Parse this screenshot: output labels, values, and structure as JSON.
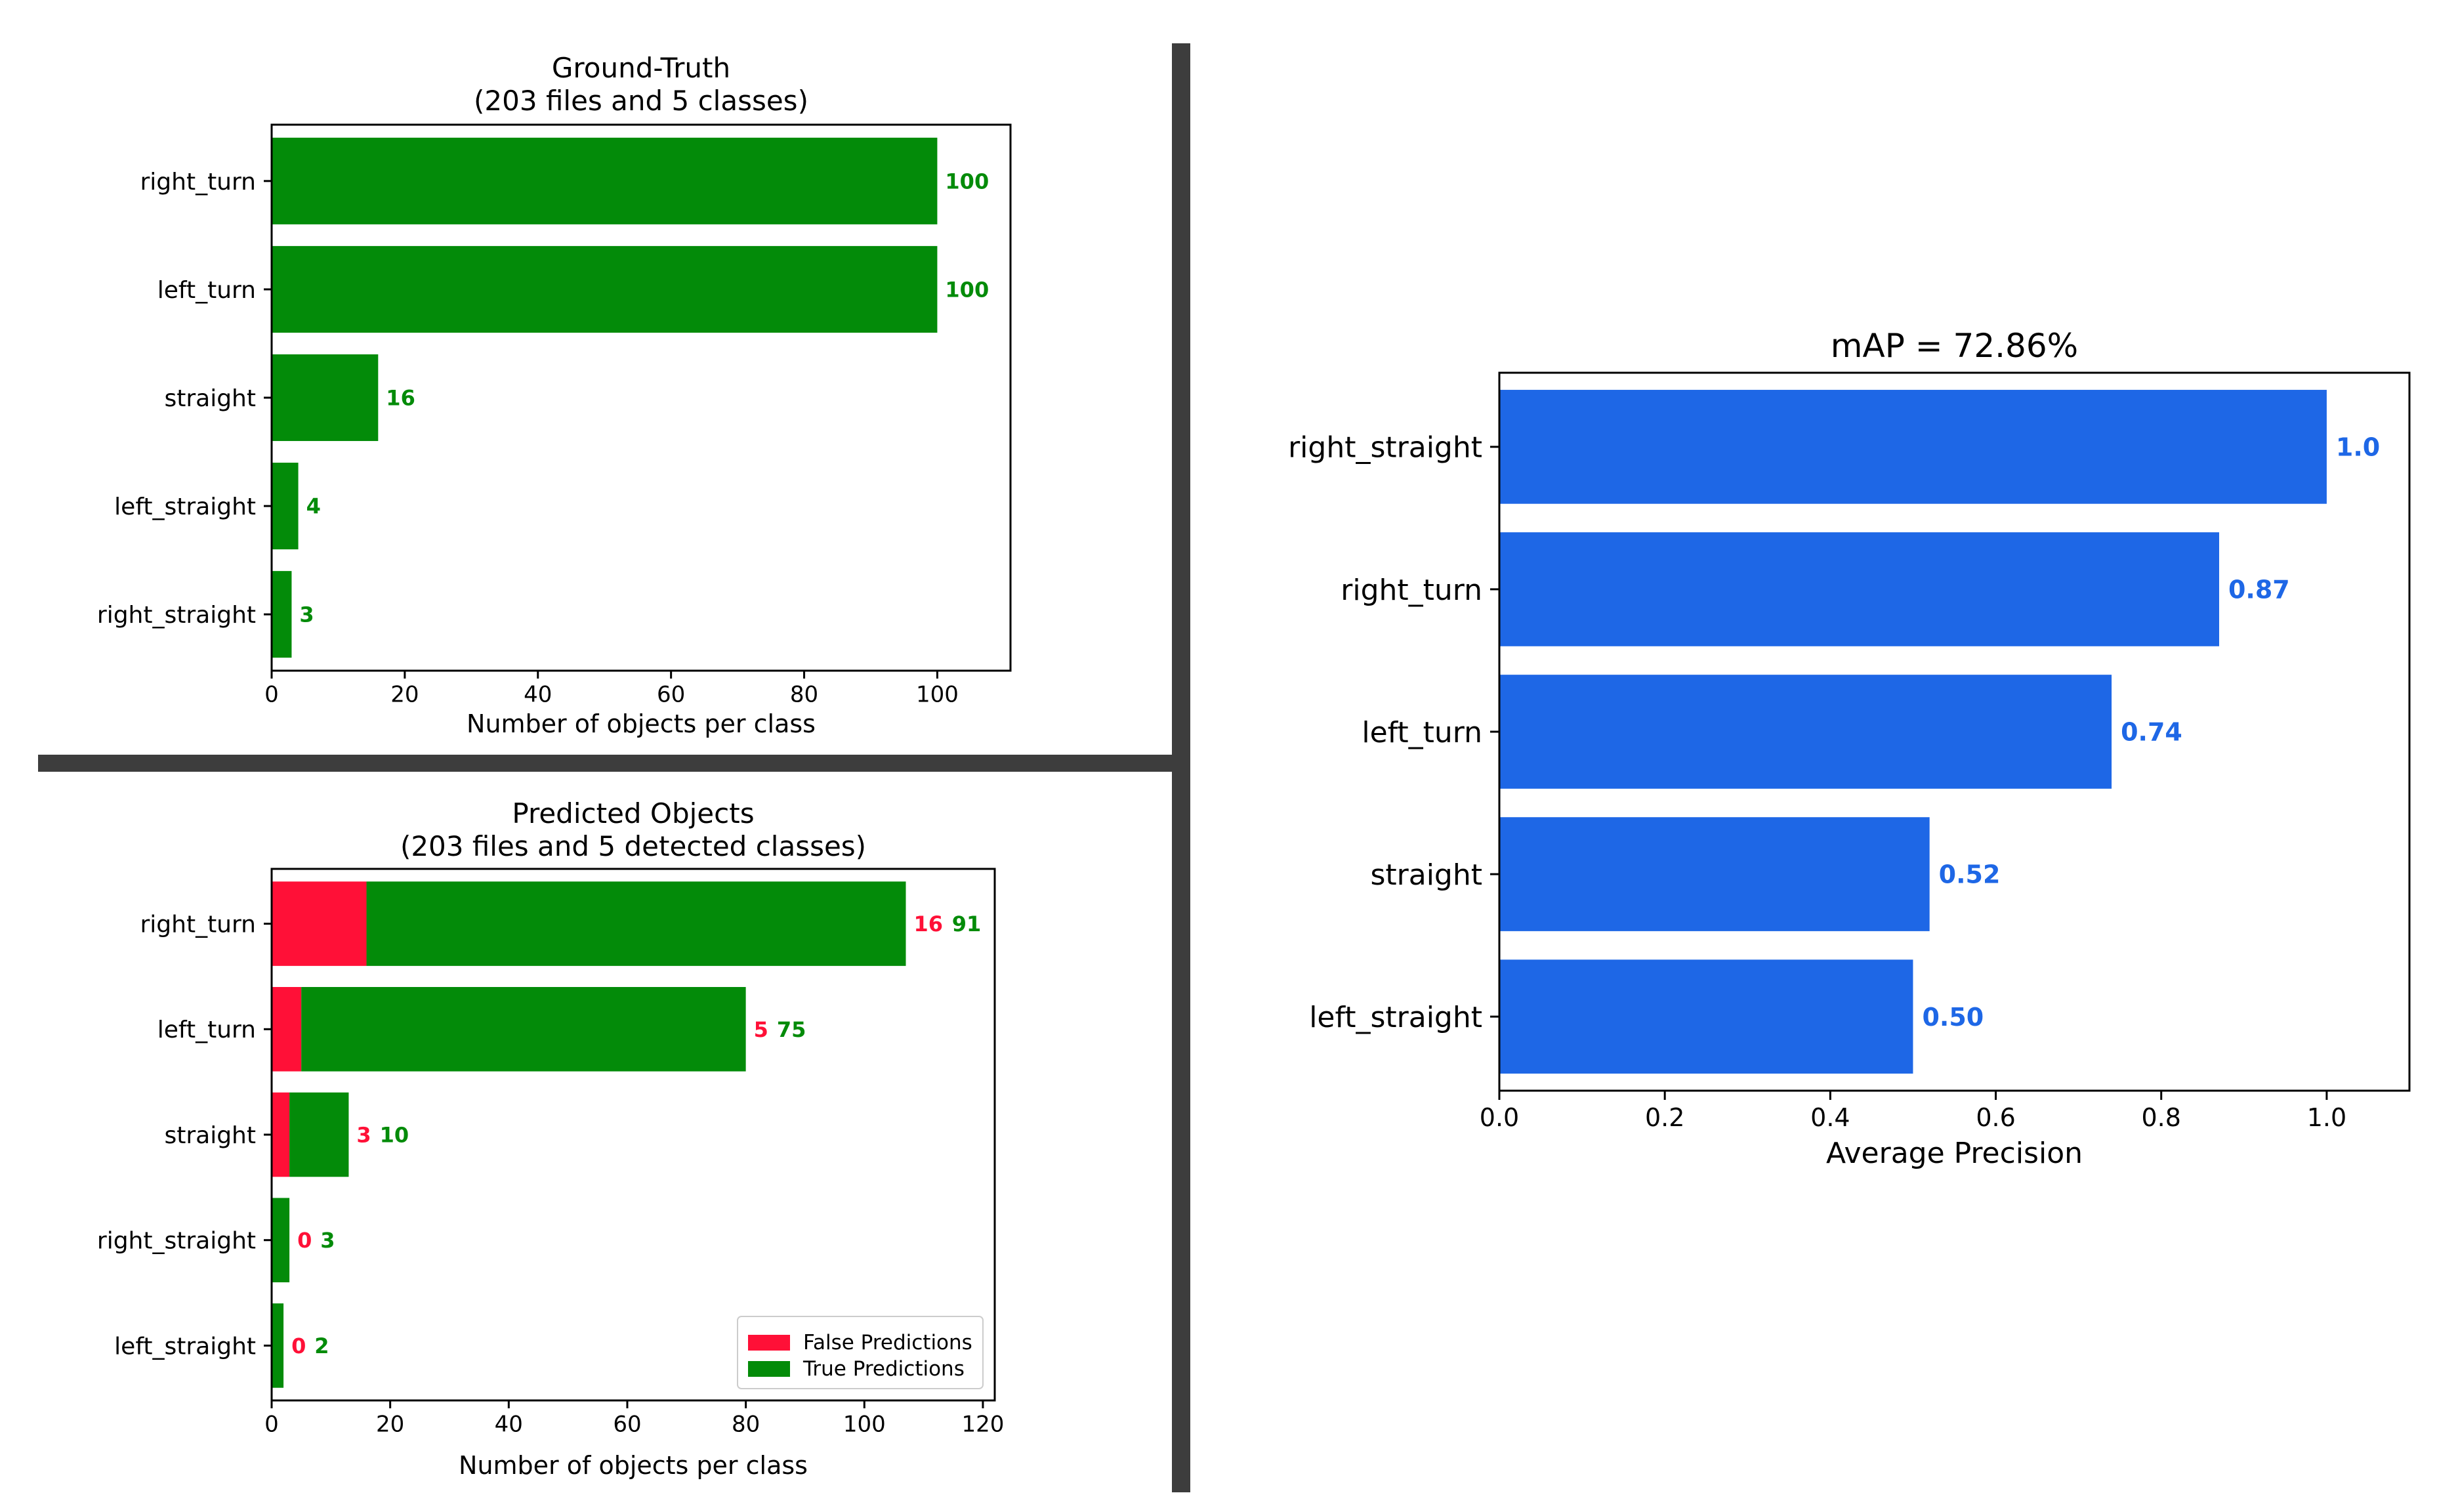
{
  "colors": {
    "tp_green": "#038b09",
    "fp_red": "#ff1037",
    "ap_blue": "#1e67e6",
    "axis_black": "#000000"
  },
  "chart_data": [
    {
      "id": "ground_truth",
      "type": "bar",
      "orientation": "horizontal",
      "title": "Ground-Truth",
      "subtitle": "(203 files and 5 classes)",
      "xlabel": "Number of objects per class",
      "ylabel": "",
      "xlim": [
        0,
        111
      ],
      "xticks": [
        0,
        20,
        40,
        60,
        80,
        100
      ],
      "grid": false,
      "categories": [
        "right_turn",
        "left_turn",
        "straight",
        "left_straight",
        "right_straight"
      ],
      "values": [
        100,
        100,
        16,
        4,
        3
      ],
      "value_labels": [
        "100",
        "100",
        "16",
        "4",
        "3"
      ],
      "bar_color": "#038b09"
    },
    {
      "id": "predicted_objects",
      "type": "bar",
      "orientation": "horizontal",
      "stacked": true,
      "title": "Predicted Objects",
      "subtitle": "(203 files and 5 detected classes)",
      "xlabel": "Number of objects per class",
      "ylabel": "",
      "xlim": [
        0,
        122
      ],
      "xticks": [
        0,
        20,
        40,
        60,
        80,
        100,
        120
      ],
      "grid": false,
      "legend_position": "bottom-right",
      "categories": [
        "right_turn",
        "left_turn",
        "straight",
        "right_straight",
        "left_straight"
      ],
      "series": [
        {
          "name": "False Predictions",
          "color": "#ff1037",
          "values": [
            16,
            5,
            3,
            0,
            0
          ]
        },
        {
          "name": "True Predictions",
          "color": "#038b09",
          "values": [
            91,
            75,
            10,
            3,
            2
          ]
        }
      ]
    },
    {
      "id": "average_precision",
      "type": "bar",
      "orientation": "horizontal",
      "title": "mAP = 72.86%",
      "xlabel": "Average Precision",
      "ylabel": "",
      "xlim": [
        0,
        1.1
      ],
      "xticks": [
        "0.0",
        "0.2",
        "0.4",
        "0.6",
        "0.8",
        "1.0"
      ],
      "grid": false,
      "categories": [
        "right_straight",
        "right_turn",
        "left_turn",
        "straight",
        "left_straight"
      ],
      "values": [
        1.0,
        0.87,
        0.74,
        0.52,
        0.5
      ],
      "value_labels": [
        "1.0",
        "0.87",
        "0.74",
        "0.52",
        "0.50"
      ],
      "bar_color": "#1e67e6"
    }
  ]
}
